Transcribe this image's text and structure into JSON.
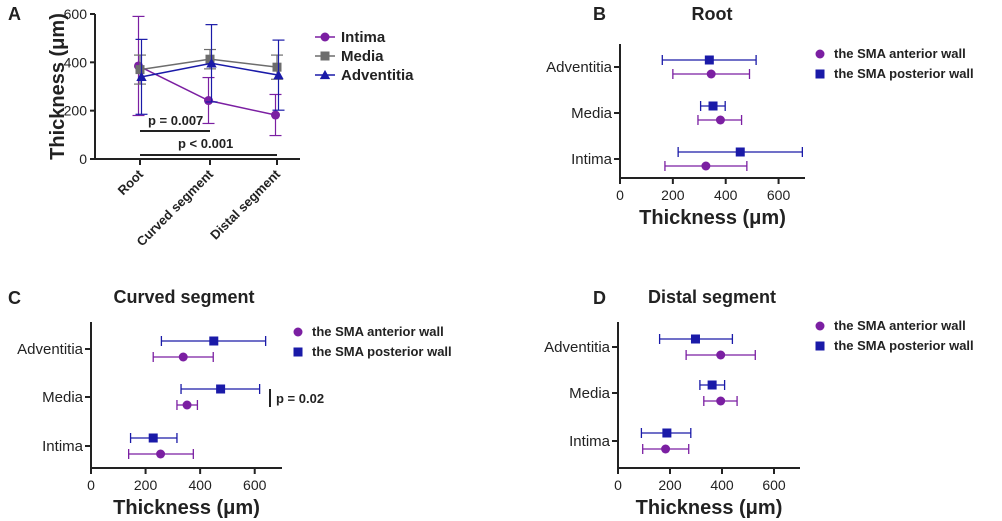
{
  "chart_data": [
    {
      "panel": "A",
      "type": "line",
      "title": "",
      "xlabel": "",
      "ylabel": "Thickness (μm)",
      "ylim": [
        0,
        600
      ],
      "yticks": [
        "0",
        "200",
        "400",
        "600"
      ],
      "categories": [
        "Root",
        "Curved segment",
        "Distal segment"
      ],
      "series": [
        {
          "name": "Intima",
          "color": "#7b1fa2",
          "marker": "circle",
          "values": [
            385,
            242,
            182
          ],
          "err": [
            205,
            95,
            85
          ]
        },
        {
          "name": "Media",
          "color": "#6d6d6d",
          "marker": "square",
          "values": [
            370,
            413,
            380
          ],
          "err": [
            60,
            40,
            50
          ]
        },
        {
          "name": "Adventitia",
          "color": "#1a1aa8",
          "marker": "triangle",
          "values": [
            340,
            396,
            347
          ],
          "err": [
            155,
            160,
            145
          ]
        }
      ],
      "annotations": [
        {
          "text": "p = 0.007",
          "from": "Root",
          "to": "Curved segment"
        },
        {
          "text": "p < 0.001",
          "from": "Root",
          "to": "Distal segment"
        }
      ]
    },
    {
      "panel": "B",
      "type": "scatter",
      "title": "Root",
      "xlabel": "Thickness (μm)",
      "xlim": [
        0,
        700
      ],
      "xticks": [
        "0",
        "200",
        "400",
        "600"
      ],
      "categories": [
        "Adventitia",
        "Media",
        "Intima"
      ],
      "series": [
        {
          "name": "the SMA anterior wall",
          "color": "#7b1fa2",
          "marker": "circle",
          "values": [
            345,
            380,
            325
          ],
          "low": [
            200,
            295,
            170
          ],
          "high": [
            490,
            460,
            480
          ]
        },
        {
          "name": "the SMA posterior wall",
          "color": "#1a1aa8",
          "marker": "square",
          "values": [
            338,
            352,
            455
          ],
          "low": [
            160,
            305,
            220
          ],
          "high": [
            515,
            398,
            690
          ]
        }
      ]
    },
    {
      "panel": "C",
      "type": "scatter",
      "title": "Curved segment",
      "xlabel": "Thickness (μm)",
      "xlim": [
        0,
        700
      ],
      "xticks": [
        "0",
        "200",
        "400",
        "600"
      ],
      "categories": [
        "Adventitia",
        "Media",
        "Intima"
      ],
      "series": [
        {
          "name": "the SMA anterior wall",
          "color": "#7b1fa2",
          "marker": "circle",
          "values": [
            338,
            352,
            255
          ],
          "low": [
            228,
            315,
            138
          ],
          "high": [
            448,
            390,
            375
          ]
        },
        {
          "name": "the SMA posterior wall",
          "color": "#1a1aa8",
          "marker": "square",
          "values": [
            450,
            475,
            228
          ],
          "low": [
            258,
            330,
            145
          ],
          "high": [
            640,
            618,
            315
          ]
        }
      ],
      "annotations": [
        {
          "text": "p = 0.02",
          "category": "Media"
        }
      ]
    },
    {
      "panel": "D",
      "type": "scatter",
      "title": "Distal segment",
      "xlabel": "Thickness (μm)",
      "xlim": [
        0,
        700
      ],
      "xticks": [
        "0",
        "200",
        "400",
        "600"
      ],
      "categories": [
        "Adventitia",
        "Media",
        "Intima"
      ],
      "series": [
        {
          "name": "the SMA anterior wall",
          "color": "#7b1fa2",
          "marker": "circle",
          "values": [
            395,
            395,
            183
          ],
          "low": [
            262,
            330,
            95
          ],
          "high": [
            528,
            458,
            272
          ]
        },
        {
          "name": "the SMA posterior wall",
          "color": "#1a1aa8",
          "marker": "square",
          "values": [
            298,
            362,
            188
          ],
          "low": [
            160,
            315,
            90
          ],
          "high": [
            440,
            410,
            280
          ]
        }
      ]
    }
  ]
}
